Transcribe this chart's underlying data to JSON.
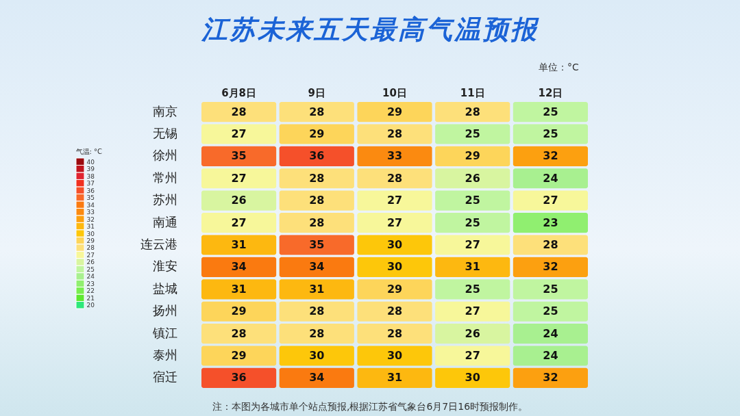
{
  "chart_data": {
    "type": "heatmap",
    "title": "江苏未来五天最高气温预报",
    "categories": [
      "6月8日",
      "9日",
      "10日",
      "11日",
      "12日"
    ],
    "y_categories": [
      "南京",
      "无锡",
      "徐州",
      "常州",
      "苏州",
      "南通",
      "连云港",
      "淮安",
      "盐城",
      "扬州",
      "镇江",
      "泰州",
      "宿迁"
    ],
    "cells": [
      [
        28,
        28,
        29,
        28,
        25
      ],
      [
        27,
        29,
        28,
        25,
        25
      ],
      [
        35,
        36,
        33,
        29,
        32
      ],
      [
        27,
        28,
        28,
        26,
        24
      ],
      [
        26,
        28,
        27,
        25,
        27
      ],
      [
        27,
        28,
        27,
        25,
        23
      ],
      [
        31,
        35,
        30,
        27,
        28
      ],
      [
        34,
        34,
        30,
        31,
        32
      ],
      [
        31,
        31,
        29,
        25,
        25
      ],
      [
        29,
        28,
        28,
        27,
        25
      ],
      [
        28,
        28,
        28,
        26,
        24
      ],
      [
        29,
        30,
        30,
        27,
        24
      ],
      [
        36,
        34,
        31,
        30,
        32
      ]
    ],
    "data_labels": true,
    "clabel": "气温: °C",
    "clim": [
      19.5,
      40.5
    ],
    "cticks": [
      20,
      21,
      22,
      23,
      24,
      25,
      26,
      27,
      28,
      29,
      30,
      31,
      32,
      33,
      34,
      35,
      36,
      37,
      38,
      39,
      40
    ],
    "colors": [
      "#2ee87a",
      "#5de830",
      "#78ee50",
      "#90ef70",
      "#a8f090",
      "#c0f5a0",
      "#d8f5a0",
      "#f7f79a",
      "#fde07a",
      "#fdd55a",
      "#fdc70a",
      "#fdb810",
      "#fca010",
      "#fb8a10",
      "#fa7a10",
      "#f86a2a",
      "#f5502a",
      "#f03020",
      "#e02430",
      "#c0151f",
      "#9b0a0f"
    ],
    "annotations": [
      "单位：°C",
      "注：本图为各城市单个站点预报,根据江苏省气象台6月7日16时预报制作。"
    ]
  }
}
